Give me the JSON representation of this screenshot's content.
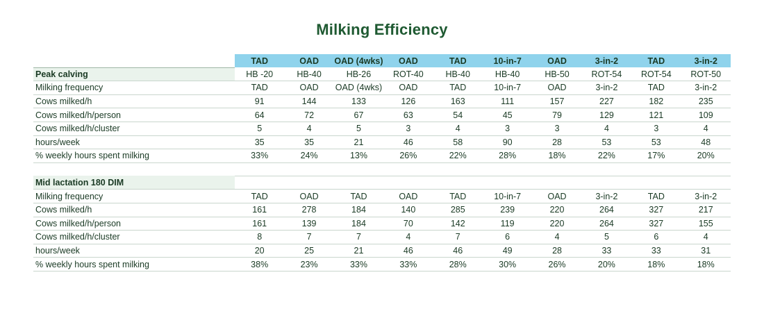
{
  "title": "Milking Efficiency",
  "header_regimes": [
    "TAD",
    "OAD",
    "OAD (4wks)",
    "OAD",
    "TAD",
    "10-in-7",
    "OAD",
    "3-in-2",
    "TAD",
    "3-in-2"
  ],
  "sections": [
    {
      "name": "Peak calving",
      "section_values": [
        "HB -20",
        "HB-40",
        "HB-26",
        "ROT-40",
        "HB-40",
        "HB-40",
        "HB-50",
        "ROT-54",
        "ROT-54",
        "ROT-50"
      ],
      "rows": [
        {
          "label": "Milking frequency",
          "values": [
            "TAD",
            "OAD",
            "OAD (4wks)",
            "OAD",
            "TAD",
            "10-in-7",
            "OAD",
            "3-in-2",
            "TAD",
            "3-in-2"
          ]
        },
        {
          "label": "Cows milked/h",
          "values": [
            "91",
            "144",
            "133",
            "126",
            "163",
            "111",
            "157",
            "227",
            "182",
            "235"
          ]
        },
        {
          "label": "Cows milked/h/person",
          "values": [
            "64",
            "72",
            "67",
            "63",
            "54",
            "45",
            "79",
            "129",
            "121",
            "109"
          ]
        },
        {
          "label": "Cows milked/h/cluster",
          "values": [
            "5",
            "4",
            "5",
            "3",
            "4",
            "3",
            "3",
            "4",
            "3",
            "4"
          ]
        },
        {
          "label": "hours/week",
          "values": [
            "35",
            "35",
            "21",
            "46",
            "58",
            "90",
            "28",
            "53",
            "53",
            "48"
          ]
        },
        {
          "label": "% weekly hours spent milking",
          "values": [
            "33%",
            "24%",
            "13%",
            "26%",
            "22%",
            "28%",
            "18%",
            "22%",
            "17%",
            "20%"
          ]
        }
      ]
    },
    {
      "name": "Mid lactation 180 DIM",
      "section_values": [],
      "rows": [
        {
          "label": "Milking frequency",
          "values": [
            "TAD",
            "OAD",
            "TAD",
            "OAD",
            "TAD",
            "10-in-7",
            "OAD",
            "3-in-2",
            "TAD",
            "3-in-2"
          ]
        },
        {
          "label": "Cows milked/h",
          "values": [
            "161",
            "278",
            "184",
            "140",
            "285",
            "239",
            "220",
            "264",
            "327",
            "217"
          ]
        },
        {
          "label": "Cows milked/h/person",
          "values": [
            "161",
            "139",
            "184",
            "70",
            "142",
            "119",
            "220",
            "264",
            "327",
            "155"
          ]
        },
        {
          "label": "Cows milked/h/cluster",
          "values": [
            "8",
            "7",
            "7",
            "4",
            "7",
            "6",
            "4",
            "5",
            "6",
            "4"
          ]
        },
        {
          "label": "hours/week",
          "values": [
            "20",
            "25",
            "21",
            "46",
            "46",
            "49",
            "28",
            "33",
            "33",
            "31"
          ]
        },
        {
          "label": "% weekly hours spent milking",
          "values": [
            "38%",
            "23%",
            "33%",
            "33%",
            "28%",
            "30%",
            "26%",
            "20%",
            "18%",
            "18%"
          ]
        }
      ]
    }
  ]
}
